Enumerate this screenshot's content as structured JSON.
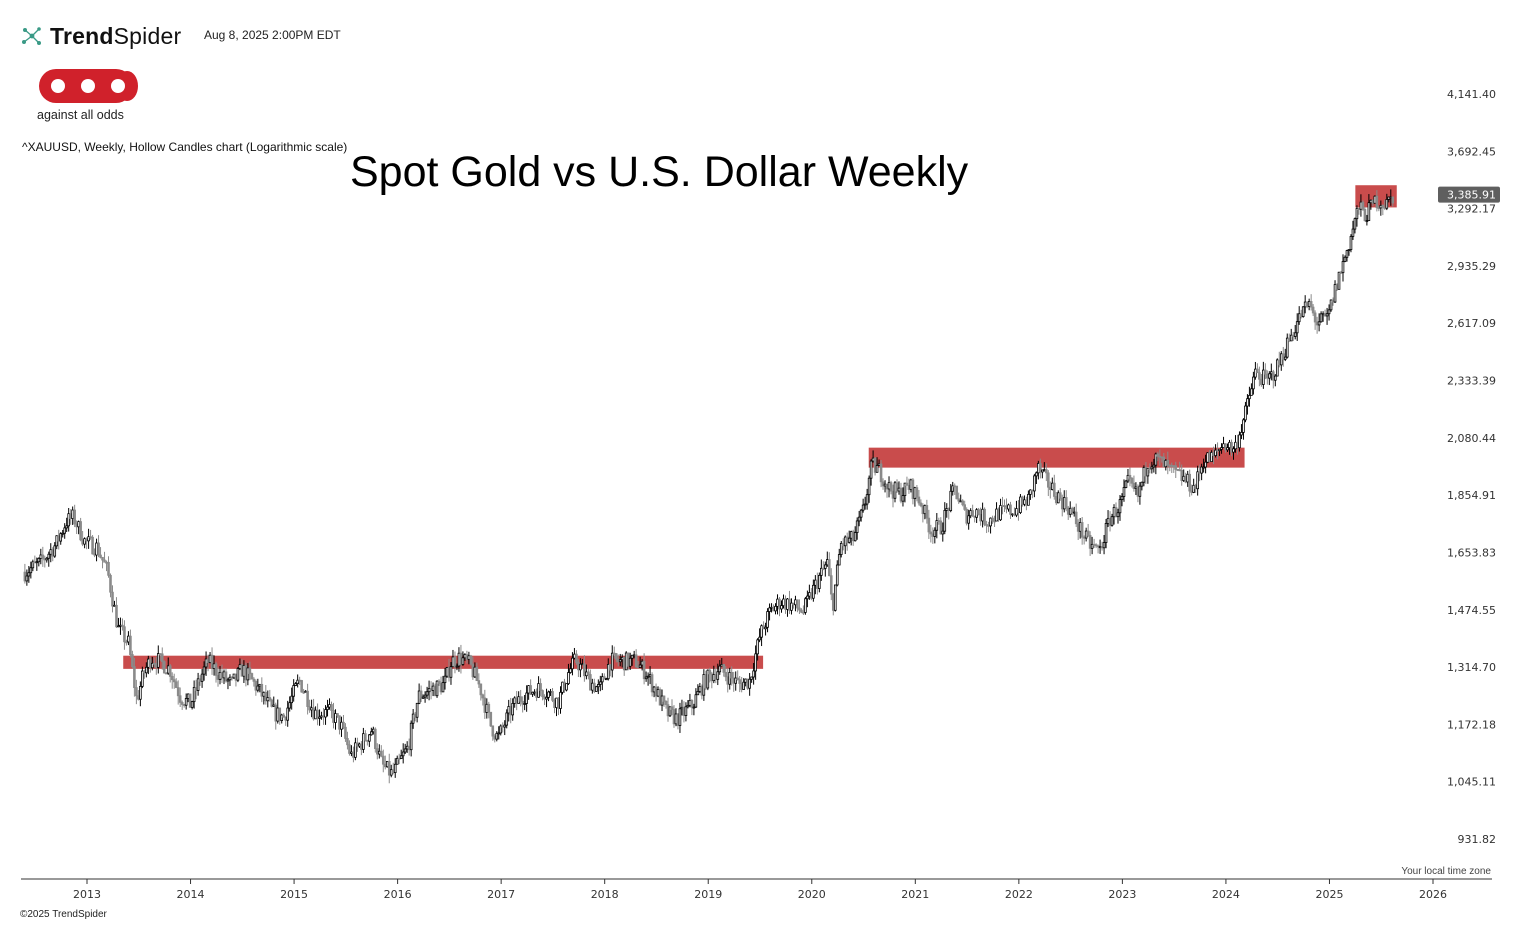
{
  "header": {
    "brand_bold": "Trend",
    "brand_light": "Spider",
    "timestamp": "Aug 8, 2025 2:00PM EDT",
    "logo_icon": "trendspider-network-icon"
  },
  "watermark": {
    "logo_icon": "aao-logo",
    "tagline": "against all odds"
  },
  "chart_description": "^XAUUSD, Weekly, Hollow Candles chart (Logarithmic scale)",
  "footer": {
    "timezone": "Your local time zone",
    "copyright": "©2025 TrendSpider"
  },
  "colors": {
    "zone": "#c94c4c",
    "candle_up": "#000000",
    "candle_down": "#8a8a8a",
    "last_price_bg": "#5f5f5f"
  },
  "chart_data": {
    "type": "candlestick",
    "title": "Spot Gold vs U.S. Dollar Weekly",
    "symbol": "^XAUUSD",
    "interval": "Weekly",
    "scale": "log",
    "ylim": [
      880,
      4350
    ],
    "xlim": [
      2012.4,
      2026.5
    ],
    "y_ticks": [
      "4,141.40",
      "3,692.45",
      "3,292.17",
      "2,935.29",
      "2,617.09",
      "2,333.39",
      "2,080.44",
      "1,854.91",
      "1,653.83",
      "1,474.55",
      "1,314.70",
      "1,172.18",
      "1,045.11",
      "931.82"
    ],
    "x_ticks": [
      "2013",
      "2014",
      "2015",
      "2016",
      "2017",
      "2018",
      "2019",
      "2020",
      "2021",
      "2022",
      "2023",
      "2024",
      "2025",
      "2026"
    ],
    "last_price": "3,385.91",
    "price_path": [
      [
        2012.4,
        1590
      ],
      [
        2012.55,
        1620
      ],
      [
        2012.7,
        1680
      ],
      [
        2012.8,
        1760
      ],
      [
        2012.87,
        1775
      ],
      [
        2012.98,
        1690
      ],
      [
        2013.1,
        1670
      ],
      [
        2013.2,
        1590
      ],
      [
        2013.3,
        1420
      ],
      [
        2013.4,
        1380
      ],
      [
        2013.48,
        1230
      ],
      [
        2013.55,
        1300
      ],
      [
        2013.62,
        1340
      ],
      [
        2013.7,
        1330
      ],
      [
        2013.8,
        1310
      ],
      [
        2013.9,
        1240
      ],
      [
        2014.0,
        1220
      ],
      [
        2014.1,
        1290
      ],
      [
        2014.17,
        1330
      ],
      [
        2014.3,
        1290
      ],
      [
        2014.4,
        1270
      ],
      [
        2014.5,
        1310
      ],
      [
        2014.65,
        1260
      ],
      [
        2014.8,
        1200
      ],
      [
        2014.9,
        1190
      ],
      [
        2015.05,
        1280
      ],
      [
        2015.2,
        1200
      ],
      [
        2015.35,
        1200
      ],
      [
        2015.45,
        1170
      ],
      [
        2015.55,
        1100
      ],
      [
        2015.65,
        1130
      ],
      [
        2015.75,
        1160
      ],
      [
        2015.85,
        1080
      ],
      [
        2015.95,
        1060
      ],
      [
        2016.1,
        1120
      ],
      [
        2016.2,
        1240
      ],
      [
        2016.35,
        1260
      ],
      [
        2016.45,
        1270
      ],
      [
        2016.52,
        1330
      ],
      [
        2016.6,
        1340
      ],
      [
        2016.7,
        1320
      ],
      [
        2016.8,
        1260
      ],
      [
        2016.9,
        1170
      ],
      [
        2016.97,
        1140
      ],
      [
        2017.1,
        1210
      ],
      [
        2017.2,
        1240
      ],
      [
        2017.35,
        1260
      ],
      [
        2017.45,
        1250
      ],
      [
        2017.55,
        1225
      ],
      [
        2017.65,
        1300
      ],
      [
        2017.72,
        1335
      ],
      [
        2017.85,
        1280
      ],
      [
        2017.95,
        1255
      ],
      [
        2018.05,
        1330
      ],
      [
        2018.15,
        1330
      ],
      [
        2018.3,
        1330
      ],
      [
        2018.4,
        1300
      ],
      [
        2018.5,
        1250
      ],
      [
        2018.6,
        1200
      ],
      [
        2018.7,
        1185
      ],
      [
        2018.85,
        1220
      ],
      [
        2018.97,
        1280
      ],
      [
        2019.1,
        1310
      ],
      [
        2019.2,
        1290
      ],
      [
        2019.3,
        1270
      ],
      [
        2019.4,
        1280
      ],
      [
        2019.5,
        1400
      ],
      [
        2019.6,
        1470
      ],
      [
        2019.7,
        1500
      ],
      [
        2019.8,
        1490
      ],
      [
        2019.92,
        1470
      ],
      [
        2020.05,
        1560
      ],
      [
        2020.15,
        1620
      ],
      [
        2020.2,
        1480
      ],
      [
        2020.28,
        1680
      ],
      [
        2020.4,
        1700
      ],
      [
        2020.5,
        1800
      ],
      [
        2020.58,
        1970
      ],
      [
        2020.65,
        1950
      ],
      [
        2020.75,
        1880
      ],
      [
        2020.85,
        1860
      ],
      [
        2020.95,
        1890
      ],
      [
        2021.05,
        1830
      ],
      [
        2021.15,
        1730
      ],
      [
        2021.25,
        1740
      ],
      [
        2021.38,
        1880
      ],
      [
        2021.48,
        1780
      ],
      [
        2021.58,
        1800
      ],
      [
        2021.7,
        1760
      ],
      [
        2021.8,
        1790
      ],
      [
        2021.95,
        1800
      ],
      [
        2022.1,
        1840
      ],
      [
        2022.18,
        1960
      ],
      [
        2022.28,
        1900
      ],
      [
        2022.38,
        1850
      ],
      [
        2022.48,
        1810
      ],
      [
        2022.58,
        1740
      ],
      [
        2022.68,
        1680
      ],
      [
        2022.78,
        1660
      ],
      [
        2022.88,
        1770
      ],
      [
        2022.98,
        1820
      ],
      [
        2023.05,
        1900
      ],
      [
        2023.15,
        1850
      ],
      [
        2023.25,
        1990
      ],
      [
        2023.35,
        1990
      ],
      [
        2023.45,
        1950
      ],
      [
        2023.58,
        1920
      ],
      [
        2023.7,
        1880
      ],
      [
        2023.78,
        1990
      ],
      [
        2023.88,
        2000
      ],
      [
        2023.98,
        2060
      ],
      [
        2024.08,
        2030
      ],
      [
        2024.18,
        2170
      ],
      [
        2024.28,
        2370
      ],
      [
        2024.4,
        2330
      ],
      [
        2024.5,
        2400
      ],
      [
        2024.6,
        2520
      ],
      [
        2024.72,
        2660
      ],
      [
        2024.8,
        2720
      ],
      [
        2024.88,
        2620
      ],
      [
        2024.98,
        2640
      ],
      [
        2025.08,
        2850
      ],
      [
        2025.18,
        3050
      ],
      [
        2025.28,
        3300
      ],
      [
        2025.35,
        3250
      ],
      [
        2025.45,
        3350
      ],
      [
        2025.55,
        3320
      ],
      [
        2025.62,
        3385.91
      ]
    ],
    "zones": [
      {
        "x": [
          2013.35,
          2019.53
        ],
        "y": [
          1310,
          1345
        ]
      },
      {
        "x": [
          2020.55,
          2024.18
        ],
        "y": [
          1960,
          2040
        ]
      },
      {
        "x": [
          2025.25,
          2025.65
        ],
        "y": [
          3300,
          3450
        ]
      }
    ]
  }
}
